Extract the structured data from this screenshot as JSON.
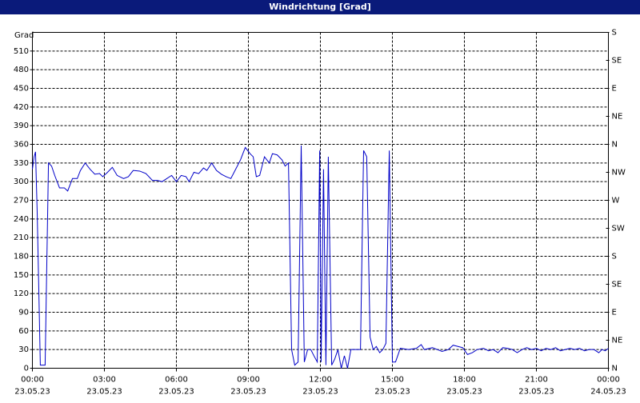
{
  "chart_data": {
    "type": "line",
    "title": "Windrichtung [Grad]",
    "y_label": "Grad",
    "color": "#0000c8",
    "grid": true,
    "xlim": [
      0,
      24
    ],
    "xticks": [
      {
        "value": 0,
        "label": "00:00",
        "date": "23.05.23"
      },
      {
        "value": 3,
        "label": "03:00",
        "date": "23.05.23"
      },
      {
        "value": 6,
        "label": "06:00",
        "date": "23.05.23"
      },
      {
        "value": 9,
        "label": "09:00",
        "date": "23.05.23"
      },
      {
        "value": 12,
        "label": "12:00",
        "date": "23.05.23"
      },
      {
        "value": 15,
        "label": "15:00",
        "date": "23.05.23"
      },
      {
        "value": 18,
        "label": "18:00",
        "date": "23.05.23"
      },
      {
        "value": 21,
        "label": "21:00",
        "date": "23.05.23"
      },
      {
        "value": 24,
        "label": "00:00",
        "date": "24.05.23"
      }
    ],
    "ylim": [
      0,
      540
    ],
    "yticks": [
      0,
      30,
      60,
      90,
      120,
      150,
      180,
      210,
      240,
      270,
      300,
      330,
      360,
      390,
      420,
      450,
      480,
      510
    ],
    "y2lim": [
      0,
      540
    ],
    "y2ticks": [
      {
        "value": 0,
        "label": "N"
      },
      {
        "value": 45,
        "label": "NE"
      },
      {
        "value": 90,
        "label": "E"
      },
      {
        "value": 135,
        "label": "SE"
      },
      {
        "value": 180,
        "label": "S"
      },
      {
        "value": 225,
        "label": "SW"
      },
      {
        "value": 270,
        "label": "W"
      },
      {
        "value": 315,
        "label": "NW"
      },
      {
        "value": 360,
        "label": "N"
      },
      {
        "value": 405,
        "label": "NE"
      },
      {
        "value": 450,
        "label": "E"
      },
      {
        "value": 495,
        "label": "SE"
      },
      {
        "value": 540,
        "label": "S"
      }
    ],
    "x": [
      0,
      0.07,
      0.13,
      0.2,
      0.27,
      0.33,
      0.53,
      0.67,
      0.8,
      0.93,
      1.13,
      1.33,
      1.47,
      1.67,
      1.87,
      2.0,
      2.2,
      2.4,
      2.6,
      2.8,
      2.93,
      3.13,
      3.33,
      3.53,
      3.8,
      4.0,
      4.2,
      4.47,
      4.73,
      5.0,
      5.2,
      5.4,
      5.6,
      5.8,
      6.0,
      6.2,
      6.4,
      6.53,
      6.73,
      6.93,
      7.13,
      7.27,
      7.47,
      7.67,
      7.87,
      8.07,
      8.27,
      8.47,
      8.67,
      8.87,
      9.07,
      9.2,
      9.33,
      9.47,
      9.67,
      9.87,
      10.0,
      10.2,
      10.4,
      10.53,
      10.67,
      10.8,
      10.93,
      11.07,
      11.2,
      11.33,
      11.47,
      11.6,
      11.73,
      11.87,
      11.97,
      12.03,
      12.13,
      12.23,
      12.33,
      12.47,
      12.6,
      12.73,
      12.87,
      13.0,
      13.13,
      13.27,
      13.47,
      13.67,
      13.8,
      13.93,
      14.07,
      14.2,
      14.33,
      14.47,
      14.6,
      14.73,
      14.87,
      15.0,
      15.13,
      15.33,
      15.67,
      16.0,
      16.2,
      16.33,
      16.67,
      16.87,
      17.07,
      17.33,
      17.53,
      17.73,
      17.93,
      18.13,
      18.33,
      18.53,
      18.8,
      19.0,
      19.2,
      19.4,
      19.6,
      19.8,
      20.0,
      20.2,
      20.4,
      20.6,
      20.8,
      21.0,
      21.2,
      21.4,
      21.6,
      21.8,
      22.0,
      22.2,
      22.4,
      22.6,
      22.8,
      23.0,
      23.2,
      23.4,
      23.6,
      23.73,
      23.87,
      24.0
    ],
    "values": [
      320,
      340,
      348,
      250,
      120,
      5,
      5,
      330,
      325,
      310,
      290,
      290,
      285,
      305,
      305,
      318,
      330,
      320,
      312,
      313,
      308,
      315,
      323,
      310,
      305,
      308,
      318,
      317,
      313,
      302,
      302,
      300,
      305,
      310,
      300,
      310,
      308,
      300,
      315,
      313,
      322,
      318,
      330,
      318,
      312,
      308,
      305,
      320,
      335,
      355,
      345,
      340,
      308,
      310,
      340,
      330,
      345,
      343,
      335,
      325,
      330,
      30,
      5,
      10,
      358,
      10,
      30,
      30,
      20,
      10,
      350,
      10,
      320,
      5,
      340,
      5,
      15,
      30,
      0,
      20,
      0,
      30,
      30,
      30,
      350,
      340,
      50,
      30,
      35,
      25,
      30,
      40,
      350,
      10,
      10,
      32,
      30,
      32,
      38,
      30,
      33,
      30,
      27,
      30,
      37,
      35,
      33,
      22,
      25,
      30,
      32,
      28,
      30,
      25,
      33,
      32,
      30,
      25,
      30,
      33,
      30,
      32,
      28,
      32,
      30,
      33,
      28,
      30,
      32,
      30,
      32,
      28,
      30,
      30,
      25,
      30,
      28,
      32
    ]
  }
}
